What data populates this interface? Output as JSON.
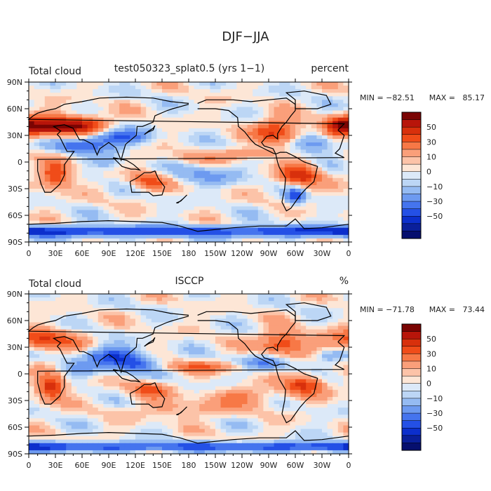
{
  "figure": {
    "title": "DJF−JJA"
  },
  "chart_data": [
    {
      "type": "heatmap",
      "variable": "Total cloud",
      "subtitle": "test050323_splat0.5 (yrs 1−1)",
      "units": "percent",
      "min_label": "MIN = −82.51",
      "max_label": "MAX =   85.17",
      "min": -82.51,
      "max": 85.17,
      "x_ticks": [
        "0",
        "30E",
        "60E",
        "90E",
        "120E",
        "150E",
        "180",
        "150W",
        "120W",
        "90W",
        "60W",
        "30W",
        "0"
      ],
      "y_ticks": [
        "90N",
        "60N",
        "30N",
        "0",
        "30S",
        "60S",
        "90S"
      ],
      "colorbar_labels": [
        "50",
        "30",
        "10",
        "0",
        "−10",
        "−30",
        "−50"
      ],
      "xlim": [
        0,
        360
      ],
      "ylim": [
        -90,
        90
      ]
    },
    {
      "type": "heatmap",
      "variable": "Total cloud",
      "subtitle": "ISCCP",
      "units": "%",
      "min_label": "MIN = −71.78",
      "max_label": "MAX =   73.44",
      "min": -71.78,
      "max": 73.44,
      "x_ticks": [
        "0",
        "30E",
        "60E",
        "90E",
        "120E",
        "150E",
        "180",
        "150W",
        "120W",
        "90W",
        "60W",
        "30W",
        "0"
      ],
      "y_ticks": [
        "90N",
        "60N",
        "30N",
        "0",
        "30S",
        "60S",
        "90S"
      ],
      "colorbar_labels": [
        "50",
        "30",
        "10",
        "0",
        "−10",
        "−30",
        "−50"
      ],
      "xlim": [
        0,
        360
      ],
      "ylim": [
        -90,
        90
      ]
    }
  ],
  "colors": {
    "levels": [
      "#7a0403",
      "#b8150a",
      "#d8300c",
      "#f04c19",
      "#f77846",
      "#fa9f7a",
      "#fcc3a8",
      "#fde6d6",
      "#dce9f8",
      "#bcd6f5",
      "#95bbf2",
      "#6d9af0",
      "#4574ee",
      "#2450e6",
      "#0c2fcc",
      "#0a1f9a",
      "#060f6e"
    ]
  }
}
